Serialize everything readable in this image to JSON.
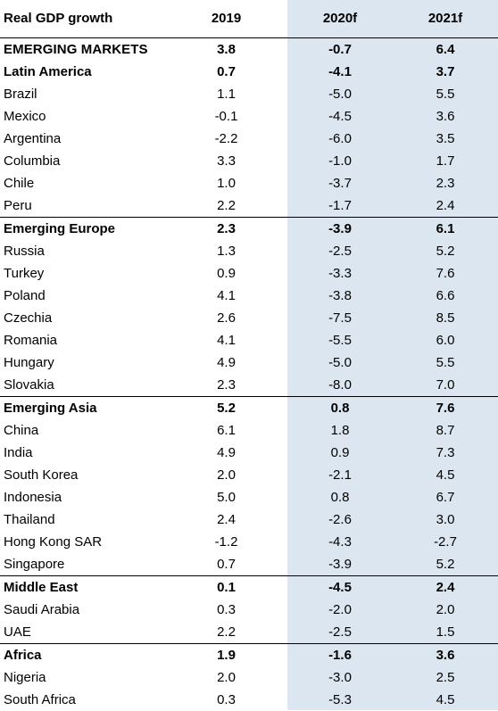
{
  "table": {
    "headers": [
      "Real GDP growth",
      "2019",
      "2020f",
      "2021f"
    ],
    "rows": [
      {
        "label": "EMERGING MARKETS",
        "v2019": "3.8",
        "v2020": "-0.7",
        "v2021": "6.4",
        "type": "em"
      },
      {
        "label": "Latin America",
        "v2019": "0.7",
        "v2020": "-4.1",
        "v2021": "3.7",
        "type": "group"
      },
      {
        "label": "Brazil",
        "v2019": "1.1",
        "v2020": "-5.0",
        "v2021": "5.5",
        "type": "item"
      },
      {
        "label": "Mexico",
        "v2019": "-0.1",
        "v2020": "-4.5",
        "v2021": "3.6",
        "type": "item"
      },
      {
        "label": "Argentina",
        "v2019": "-2.2",
        "v2020": "-6.0",
        "v2021": "3.5",
        "type": "item"
      },
      {
        "label": "Columbia",
        "v2019": "3.3",
        "v2020": "-1.0",
        "v2021": "1.7",
        "type": "item"
      },
      {
        "label": "Chile",
        "v2019": "1.0",
        "v2020": "-3.7",
        "v2021": "2.3",
        "type": "item"
      },
      {
        "label": "Peru",
        "v2019": "2.2",
        "v2020": "-1.7",
        "v2021": "2.4",
        "type": "item"
      },
      {
        "label": "Emerging Europe",
        "v2019": "2.3",
        "v2020": "-3.9",
        "v2021": "6.1",
        "type": "group"
      },
      {
        "label": "Russia",
        "v2019": "1.3",
        "v2020": "-2.5",
        "v2021": "5.2",
        "type": "item"
      },
      {
        "label": "Turkey",
        "v2019": "0.9",
        "v2020": "-3.3",
        "v2021": "7.6",
        "type": "item"
      },
      {
        "label": "Poland",
        "v2019": "4.1",
        "v2020": "-3.8",
        "v2021": "6.6",
        "type": "item"
      },
      {
        "label": "Czechia",
        "v2019": "2.6",
        "v2020": "-7.5",
        "v2021": "8.5",
        "type": "item"
      },
      {
        "label": "Romania",
        "v2019": "4.1",
        "v2020": "-5.5",
        "v2021": "6.0",
        "type": "item"
      },
      {
        "label": "Hungary",
        "v2019": "4.9",
        "v2020": "-5.0",
        "v2021": "5.5",
        "type": "item"
      },
      {
        "label": "Slovakia",
        "v2019": "2.3",
        "v2020": "-8.0",
        "v2021": "7.0",
        "type": "item"
      },
      {
        "label": "Emerging Asia",
        "v2019": "5.2",
        "v2020": "0.8",
        "v2021": "7.6",
        "type": "group"
      },
      {
        "label": "China",
        "v2019": "6.1",
        "v2020": "1.8",
        "v2021": "8.7",
        "type": "item"
      },
      {
        "label": "India",
        "v2019": "4.9",
        "v2020": "0.9",
        "v2021": "7.3",
        "type": "item"
      },
      {
        "label": "South Korea",
        "v2019": "2.0",
        "v2020": "-2.1",
        "v2021": "4.5",
        "type": "item"
      },
      {
        "label": "Indonesia",
        "v2019": "5.0",
        "v2020": "0.8",
        "v2021": "6.7",
        "type": "item"
      },
      {
        "label": "Thailand",
        "v2019": "2.4",
        "v2020": "-2.6",
        "v2021": "3.0",
        "type": "item"
      },
      {
        "label": "Hong Kong SAR",
        "v2019": "-1.2",
        "v2020": "-4.3",
        "v2021": "-2.7",
        "type": "item"
      },
      {
        "label": "Singapore",
        "v2019": "0.7",
        "v2020": "-3.9",
        "v2021": "5.2",
        "type": "item"
      },
      {
        "label": "Middle East",
        "v2019": "0.1",
        "v2020": "-4.5",
        "v2021": "2.4",
        "type": "group"
      },
      {
        "label": "Saudi Arabia",
        "v2019": "0.3",
        "v2020": "-2.0",
        "v2021": "2.0",
        "type": "item"
      },
      {
        "label": "UAE",
        "v2019": "2.2",
        "v2020": "-2.5",
        "v2021": "1.5",
        "type": "item"
      },
      {
        "label": "Africa",
        "v2019": "1.9",
        "v2020": "-1.6",
        "v2021": "3.6",
        "type": "group"
      },
      {
        "label": "Nigeria",
        "v2019": "2.0",
        "v2020": "-3.0",
        "v2021": "2.5",
        "type": "item"
      },
      {
        "label": "South Africa",
        "v2019": "0.3",
        "v2020": "-5.3",
        "v2021": "4.5",
        "type": "item"
      }
    ]
  },
  "colors": {
    "forecast_shading": "#dce6f0",
    "rule": "#000000"
  }
}
